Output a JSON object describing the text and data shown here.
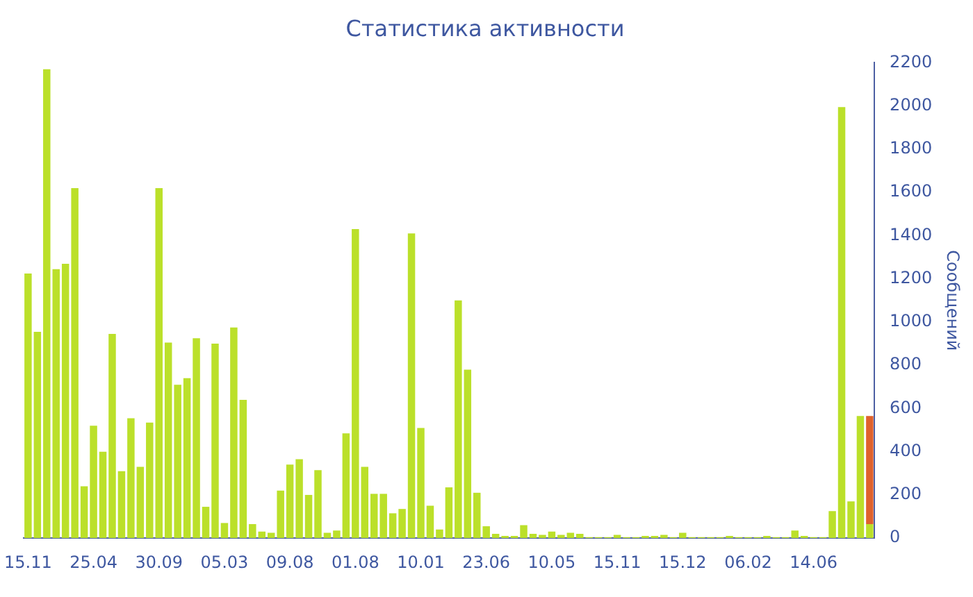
{
  "chart_data": {
    "type": "bar",
    "title": "Статистика активности",
    "ylabel": "Сообщений",
    "stacked": true,
    "legend": false,
    "categories": [
      "15.11",
      null,
      null,
      null,
      null,
      null,
      null,
      "25.04",
      null,
      null,
      null,
      null,
      null,
      null,
      "30.09",
      null,
      null,
      null,
      null,
      null,
      null,
      "05.03",
      null,
      null,
      null,
      null,
      null,
      null,
      "09.08",
      null,
      null,
      null,
      null,
      null,
      null,
      "01.08",
      null,
      null,
      null,
      null,
      null,
      null,
      "10.01",
      null,
      null,
      null,
      null,
      null,
      null,
      "23.06",
      null,
      null,
      null,
      null,
      null,
      null,
      "10.05",
      null,
      null,
      null,
      null,
      null,
      null,
      "15.11",
      null,
      null,
      null,
      null,
      null,
      null,
      "15.12",
      null,
      null,
      null,
      null,
      null,
      null,
      "06.02",
      null,
      null,
      null,
      null,
      null,
      null,
      "14.06",
      null,
      null,
      null,
      null,
      null,
      null
    ],
    "series": [
      {
        "color": "#bbe02a",
        "values": [
          1225,
          955,
          2170,
          1245,
          1270,
          1620,
          240,
          520,
          400,
          945,
          310,
          555,
          330,
          535,
          1620,
          905,
          710,
          740,
          925,
          145,
          900,
          70,
          975,
          640,
          65,
          30,
          25,
          220,
          340,
          365,
          200,
          315,
          25,
          35,
          485,
          1430,
          330,
          205,
          205,
          115,
          135,
          1410,
          510,
          150,
          40,
          235,
          1100,
          780,
          210,
          55,
          20,
          10,
          10,
          60,
          20,
          15,
          30,
          15,
          25,
          20,
          5,
          5,
          5,
          15,
          5,
          5,
          10,
          10,
          15,
          5,
          25,
          5,
          5,
          5,
          5,
          10,
          5,
          5,
          5,
          10,
          5,
          5,
          35,
          10,
          5,
          5,
          125,
          1995,
          170,
          565,
          65
        ]
      },
      {
        "color": "#e0622c",
        "values": [
          null,
          null,
          null,
          null,
          null,
          null,
          null,
          null,
          null,
          null,
          null,
          null,
          null,
          null,
          null,
          null,
          null,
          null,
          null,
          null,
          null,
          null,
          null,
          null,
          null,
          null,
          null,
          null,
          null,
          null,
          null,
          null,
          null,
          null,
          null,
          null,
          null,
          null,
          null,
          null,
          null,
          null,
          null,
          null,
          null,
          null,
          null,
          null,
          null,
          null,
          null,
          null,
          null,
          null,
          null,
          null,
          null,
          null,
          null,
          null,
          null,
          null,
          null,
          null,
          null,
          null,
          null,
          null,
          null,
          null,
          null,
          null,
          null,
          null,
          null,
          null,
          null,
          null,
          null,
          null,
          null,
          null,
          null,
          null,
          null,
          null,
          null,
          null,
          null,
          null,
          500
        ]
      }
    ],
    "ylim": [
      0,
      2200
    ],
    "yticks": [
      0,
      200,
      400,
      600,
      800,
      1000,
      1200,
      1400,
      1600,
      1800,
      2000,
      2200
    ]
  }
}
